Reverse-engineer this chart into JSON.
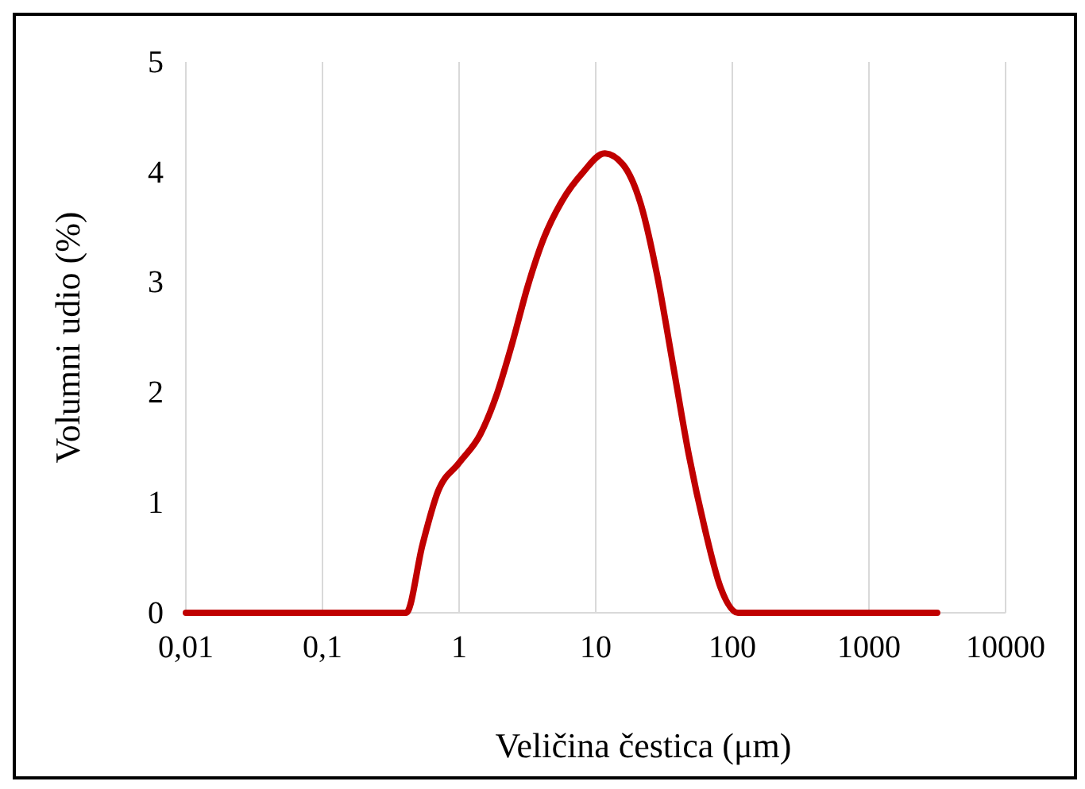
{
  "chart_data": {
    "type": "line",
    "xlabel": "Veličina čestica (μm)",
    "ylabel": "Volumni udio (%)",
    "log": "x",
    "grid": "x",
    "marker": "none",
    "line_style": "solid",
    "x": [
      0.01,
      0.41,
      0.54,
      0.7,
      1,
      1.43,
      1.86,
      2.44,
      3.19,
      4.17,
      5.68,
      8.1,
      11.6,
      15.8,
      21.6,
      28.2,
      36.8,
      48.1,
      63,
      82,
      110,
      3160
    ],
    "series": [
      {
        "color": "#c00000",
        "values": [
          0,
          0,
          0.62,
          1.1,
          1.36,
          1.62,
          1.96,
          2.44,
          2.97,
          3.4,
          3.74,
          4.0,
          4.17,
          4.07,
          3.69,
          3.06,
          2.25,
          1.43,
          0.76,
          0.23,
          0,
          0
        ]
      }
    ],
    "xlim": [
      0.01,
      10000
    ],
    "xticks": [
      {
        "value": 0.01,
        "label": "0,01"
      },
      {
        "value": 0.1,
        "label": "0,1"
      },
      1,
      10,
      100,
      1000,
      10000
    ],
    "ylim": [
      0,
      5
    ],
    "yticks": [
      0,
      1,
      2,
      3,
      4,
      5
    ]
  }
}
